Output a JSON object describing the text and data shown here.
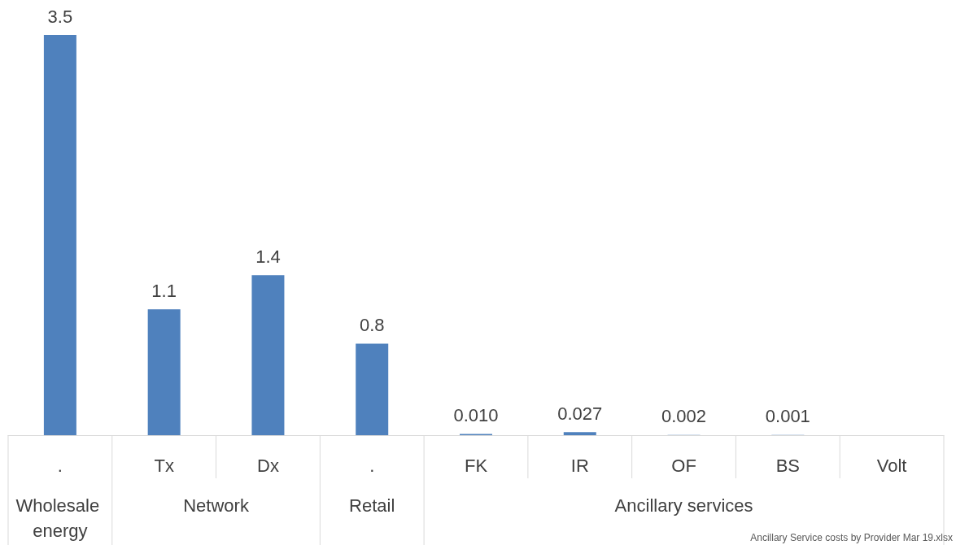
{
  "chart_data": {
    "type": "bar",
    "categories": [
      ".",
      "Tx",
      "Dx",
      ".",
      "FK",
      "IR",
      "OF",
      "BS",
      "Volt"
    ],
    "values": [
      3.5,
      1.1,
      1.4,
      0.8,
      0.01,
      0.027,
      0.002,
      0.001,
      null
    ],
    "value_labels": [
      "3.5",
      "1.1",
      "1.4",
      "0.8",
      "0.010",
      "0.027",
      "0.002",
      "0.001",
      null
    ],
    "color": "#4f81bd",
    "annotations": [
      "Wholesale energy",
      "Network",
      "Retail",
      "Ancillary services",
      "Ancillary Service costs by Provider Mar 19.xlsx"
    ]
  }
}
